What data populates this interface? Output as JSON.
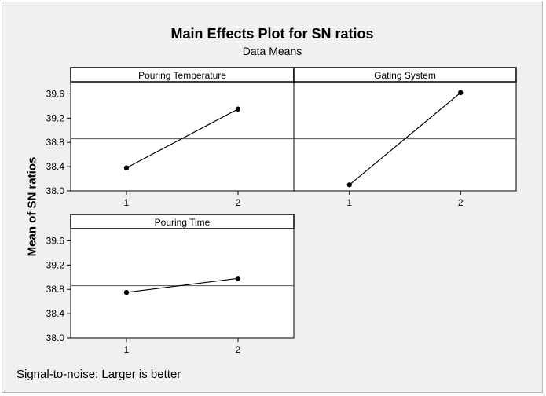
{
  "chart_data": {
    "type": "line",
    "title": "Main Effects Plot for SN ratios",
    "subtitle": "Data Means",
    "ylabel": "Mean of SN ratios",
    "footnote": "Signal-to-noise: Larger is better",
    "ylim": [
      38.0,
      39.8
    ],
    "yticks": [
      38.0,
      38.4,
      38.8,
      39.2,
      39.6
    ],
    "ytick_labels": [
      "38.0",
      "38.4",
      "38.8",
      "39.2",
      "39.6"
    ],
    "x": [
      1,
      2
    ],
    "xtick_labels": [
      "1",
      "2"
    ],
    "reference_line": 38.86,
    "grid": false,
    "panels": [
      {
        "name": "Pouring Temperature",
        "values": [
          38.38,
          39.35
        ]
      },
      {
        "name": "Gating System",
        "values": [
          38.1,
          39.62
        ]
      },
      {
        "name": "Pouring Time",
        "values": [
          38.75,
          38.98
        ]
      }
    ]
  },
  "colors": {
    "background": "#f1f0ee",
    "panel": "#ffffff",
    "line": "#000000",
    "reference_line": "#555555"
  }
}
